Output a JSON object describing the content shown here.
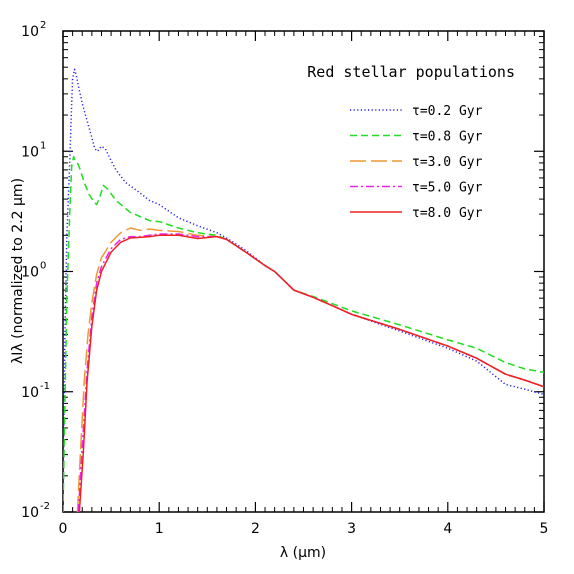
{
  "chart_data": {
    "type": "line",
    "title": "Red stellar populations",
    "xlabel": "λ (μm)",
    "ylabel": "λIλ (normalized to 2.2 μm)",
    "xlim": [
      0,
      5
    ],
    "ylim": [
      0.01,
      100
    ],
    "yscale": "log",
    "x_ticks": [
      0,
      1,
      2,
      3,
      4,
      5
    ],
    "x_tick_labels": [
      "0",
      "1",
      "2",
      "3",
      "4",
      "5"
    ],
    "y_ticks": [
      0.01,
      0.1,
      1,
      10,
      100
    ],
    "y_tick_base": "10",
    "y_tick_exponents": [
      "-2",
      "-1",
      "0",
      "1",
      "2"
    ],
    "grid": false,
    "legend_position": "top-right",
    "series": [
      {
        "name": "τ=0.2 Gyr",
        "color": "#2222ee",
        "dash": "dotted",
        "points": [
          [
            0.0,
            0.01
          ],
          [
            0.02,
            0.3
          ],
          [
            0.04,
            2.0
          ],
          [
            0.07,
            8.0
          ],
          [
            0.09,
            25
          ],
          [
            0.1,
            40
          ],
          [
            0.12,
            48
          ],
          [
            0.14,
            42
          ],
          [
            0.17,
            32
          ],
          [
            0.2,
            25
          ],
          [
            0.25,
            18
          ],
          [
            0.3,
            13
          ],
          [
            0.33,
            10.5
          ],
          [
            0.36,
            10
          ],
          [
            0.4,
            11
          ],
          [
            0.44,
            10.5
          ],
          [
            0.48,
            9
          ],
          [
            0.55,
            7
          ],
          [
            0.65,
            5.5
          ],
          [
            0.8,
            4.5
          ],
          [
            0.9,
            3.9
          ],
          [
            1.0,
            3.6
          ],
          [
            1.2,
            2.8
          ],
          [
            1.4,
            2.4
          ],
          [
            1.6,
            2.1
          ],
          [
            1.7,
            1.9
          ],
          [
            1.9,
            1.5
          ],
          [
            2.1,
            1.12
          ],
          [
            2.2,
            1.0
          ],
          [
            2.4,
            0.7
          ],
          [
            2.6,
            0.61
          ],
          [
            2.8,
            0.52
          ],
          [
            3.0,
            0.44
          ],
          [
            3.5,
            0.32
          ],
          [
            4.0,
            0.23
          ],
          [
            4.3,
            0.18
          ],
          [
            4.6,
            0.115
          ],
          [
            4.8,
            0.105
          ],
          [
            5.0,
            0.095
          ]
        ]
      },
      {
        "name": "τ=0.8 Gyr",
        "color": "#22dd22",
        "dash": "dashed",
        "points": [
          [
            0.0,
            0.01
          ],
          [
            0.02,
            0.08
          ],
          [
            0.04,
            0.6
          ],
          [
            0.07,
            3.0
          ],
          [
            0.09,
            7.5
          ],
          [
            0.11,
            9.0
          ],
          [
            0.13,
            8.3
          ],
          [
            0.15,
            8.0
          ],
          [
            0.18,
            7.0
          ],
          [
            0.22,
            5.5
          ],
          [
            0.27,
            4.4
          ],
          [
            0.32,
            3.8
          ],
          [
            0.35,
            3.6
          ],
          [
            0.38,
            4.1
          ],
          [
            0.42,
            5.2
          ],
          [
            0.47,
            4.8
          ],
          [
            0.55,
            3.9
          ],
          [
            0.7,
            3.1
          ],
          [
            0.9,
            2.65
          ],
          [
            1.0,
            2.6
          ],
          [
            1.2,
            2.3
          ],
          [
            1.4,
            2.1
          ],
          [
            1.6,
            2.0
          ],
          [
            1.7,
            1.85
          ],
          [
            1.9,
            1.45
          ],
          [
            2.1,
            1.12
          ],
          [
            2.2,
            1.0
          ],
          [
            2.4,
            0.7
          ],
          [
            2.6,
            0.62
          ],
          [
            2.8,
            0.54
          ],
          [
            3.0,
            0.47
          ],
          [
            3.5,
            0.36
          ],
          [
            4.0,
            0.27
          ],
          [
            4.3,
            0.23
          ],
          [
            4.6,
            0.175
          ],
          [
            4.8,
            0.155
          ],
          [
            5.0,
            0.145
          ]
        ]
      },
      {
        "name": "τ=3.0 Gyr",
        "color": "#ee9933",
        "dash": "longdash",
        "points": [
          [
            0.15,
            0.01
          ],
          [
            0.18,
            0.03
          ],
          [
            0.22,
            0.12
          ],
          [
            0.26,
            0.3
          ],
          [
            0.3,
            0.55
          ],
          [
            0.35,
            0.95
          ],
          [
            0.4,
            1.3
          ],
          [
            0.5,
            1.75
          ],
          [
            0.6,
            2.1
          ],
          [
            0.7,
            2.3
          ],
          [
            0.8,
            2.2
          ],
          [
            0.9,
            2.25
          ],
          [
            1.0,
            2.2
          ],
          [
            1.2,
            2.15
          ],
          [
            1.4,
            2.0
          ],
          [
            1.6,
            1.95
          ],
          [
            1.7,
            1.85
          ],
          [
            1.9,
            1.45
          ],
          [
            2.1,
            1.12
          ],
          [
            2.2,
            1.0
          ],
          [
            2.4,
            0.7
          ],
          [
            2.6,
            0.61
          ],
          [
            2.8,
            0.52
          ],
          [
            3.0,
            0.44
          ],
          [
            3.5,
            0.33
          ],
          [
            4.0,
            0.24
          ],
          [
            4.3,
            0.19
          ],
          [
            4.6,
            0.14
          ],
          [
            4.8,
            0.125
          ],
          [
            5.0,
            0.11
          ]
        ]
      },
      {
        "name": "τ=5.0 Gyr",
        "color": "#ee22ee",
        "dash": "dashdot",
        "points": [
          [
            0.16,
            0.01
          ],
          [
            0.2,
            0.035
          ],
          [
            0.25,
            0.15
          ],
          [
            0.3,
            0.42
          ],
          [
            0.35,
            0.8
          ],
          [
            0.4,
            1.1
          ],
          [
            0.5,
            1.55
          ],
          [
            0.6,
            1.85
          ],
          [
            0.7,
            1.95
          ],
          [
            0.8,
            1.95
          ],
          [
            0.9,
            2.0
          ],
          [
            1.0,
            2.05
          ],
          [
            1.2,
            2.05
          ],
          [
            1.4,
            1.95
          ],
          [
            1.6,
            1.95
          ],
          [
            1.7,
            1.85
          ],
          [
            1.9,
            1.45
          ],
          [
            2.1,
            1.12
          ],
          [
            2.2,
            1.0
          ],
          [
            2.4,
            0.7
          ],
          [
            2.6,
            0.61
          ],
          [
            2.8,
            0.52
          ],
          [
            3.0,
            0.44
          ],
          [
            3.5,
            0.33
          ],
          [
            4.0,
            0.24
          ],
          [
            4.3,
            0.19
          ],
          [
            4.6,
            0.14
          ],
          [
            4.8,
            0.125
          ],
          [
            5.0,
            0.11
          ]
        ]
      },
      {
        "name": "τ=8.0 Gyr",
        "color": "#ee2222",
        "dash": "solid",
        "points": [
          [
            0.17,
            0.01
          ],
          [
            0.21,
            0.03
          ],
          [
            0.25,
            0.12
          ],
          [
            0.3,
            0.35
          ],
          [
            0.35,
            0.7
          ],
          [
            0.4,
            1.0
          ],
          [
            0.5,
            1.45
          ],
          [
            0.6,
            1.75
          ],
          [
            0.7,
            1.9
          ],
          [
            0.8,
            1.92
          ],
          [
            0.9,
            1.95
          ],
          [
            1.0,
            2.0
          ],
          [
            1.2,
            2.0
          ],
          [
            1.4,
            1.88
          ],
          [
            1.6,
            1.95
          ],
          [
            1.7,
            1.85
          ],
          [
            1.9,
            1.45
          ],
          [
            2.1,
            1.12
          ],
          [
            2.2,
            1.0
          ],
          [
            2.4,
            0.7
          ],
          [
            2.6,
            0.61
          ],
          [
            2.8,
            0.52
          ],
          [
            3.0,
            0.44
          ],
          [
            3.5,
            0.33
          ],
          [
            4.0,
            0.24
          ],
          [
            4.3,
            0.19
          ],
          [
            4.6,
            0.14
          ],
          [
            4.8,
            0.125
          ],
          [
            5.0,
            0.11
          ]
        ]
      }
    ]
  }
}
